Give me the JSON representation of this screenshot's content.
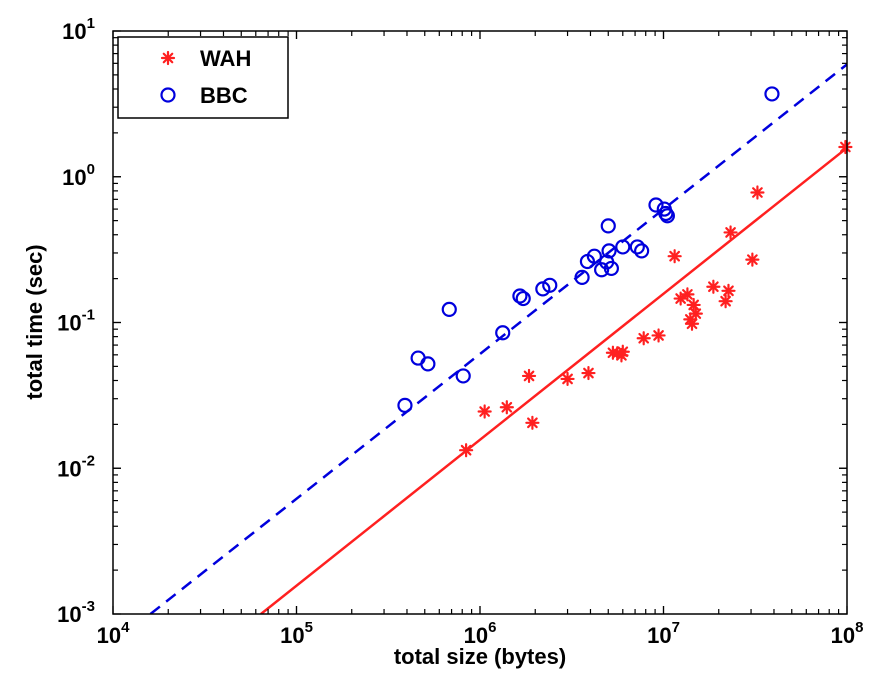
{
  "chart_data": {
    "type": "scatter",
    "xlabel": "total size (bytes)",
    "ylabel": "total time (sec)",
    "x_scale": "log",
    "y_scale": "log",
    "xlim": [
      10000,
      100000000
    ],
    "ylim": [
      0.001,
      10
    ],
    "x_ticks": [
      {
        "value": 10000,
        "base": "10",
        "exp": "4"
      },
      {
        "value": 100000,
        "base": "10",
        "exp": "5"
      },
      {
        "value": 1000000,
        "base": "10",
        "exp": "6"
      },
      {
        "value": 10000000,
        "base": "10",
        "exp": "7"
      },
      {
        "value": 100000000,
        "base": "10",
        "exp": "8"
      }
    ],
    "y_ticks": [
      {
        "value": 0.001,
        "base": "10",
        "exp": "-3"
      },
      {
        "value": 0.01,
        "base": "10",
        "exp": "-2"
      },
      {
        "value": 0.1,
        "base": "10",
        "exp": "-1"
      },
      {
        "value": 1,
        "base": "10",
        "exp": "0"
      },
      {
        "value": 10,
        "base": "10",
        "exp": "1"
      }
    ],
    "grid": false,
    "legend_position": "top-left",
    "series": [
      {
        "name": "WAH",
        "marker": "asterisk",
        "color": "#ff2020",
        "points": [
          [
            840000,
            0.0133
          ],
          [
            1060000,
            0.0245
          ],
          [
            1400000,
            0.0262
          ],
          [
            1850000,
            0.043
          ],
          [
            1930000,
            0.0205
          ],
          [
            3000000,
            0.041
          ],
          [
            3900000,
            0.045
          ],
          [
            5300000,
            0.062
          ],
          [
            5600000,
            0.0615
          ],
          [
            5900000,
            0.0595
          ],
          [
            6000000,
            0.063
          ],
          [
            7800000,
            0.078
          ],
          [
            9400000,
            0.0815
          ],
          [
            11500000,
            0.285
          ],
          [
            12400000,
            0.146
          ],
          [
            13500000,
            0.156
          ],
          [
            14000000,
            0.105
          ],
          [
            14300000,
            0.098
          ],
          [
            14600000,
            0.132
          ],
          [
            15000000,
            0.115
          ],
          [
            18700000,
            0.176
          ],
          [
            21800000,
            0.14
          ],
          [
            22600000,
            0.165
          ],
          [
            23200000,
            0.415
          ],
          [
            30500000,
            0.27
          ],
          [
            32500000,
            0.78
          ],
          [
            98000000,
            1.6
          ]
        ],
        "fit": {
          "style": "solid",
          "x": [
            64000,
            100000000
          ],
          "y": [
            0.001,
            1.58
          ]
        }
      },
      {
        "name": "BBC",
        "marker": "circle",
        "color": "#0000dd",
        "points": [
          [
            390000,
            0.027
          ],
          [
            460000,
            0.057
          ],
          [
            520000,
            0.052
          ],
          [
            680000,
            0.123
          ],
          [
            810000,
            0.043
          ],
          [
            1330000,
            0.085
          ],
          [
            1650000,
            0.152
          ],
          [
            1720000,
            0.146
          ],
          [
            2200000,
            0.17
          ],
          [
            2400000,
            0.18
          ],
          [
            3600000,
            0.204
          ],
          [
            3850000,
            0.262
          ],
          [
            4200000,
            0.285
          ],
          [
            4600000,
            0.23
          ],
          [
            4900000,
            0.26
          ],
          [
            5000000,
            0.46
          ],
          [
            5050000,
            0.31
          ],
          [
            5200000,
            0.235
          ],
          [
            6000000,
            0.33
          ],
          [
            7200000,
            0.33
          ],
          [
            7600000,
            0.31
          ],
          [
            9100000,
            0.64
          ],
          [
            10100000,
            0.6
          ],
          [
            10300000,
            0.56
          ],
          [
            10500000,
            0.54
          ],
          [
            39000000,
            3.7
          ]
        ],
        "fit": {
          "style": "dashed",
          "x": [
            16000,
            100000000
          ],
          "y": [
            0.001,
            5.9
          ]
        }
      }
    ]
  }
}
